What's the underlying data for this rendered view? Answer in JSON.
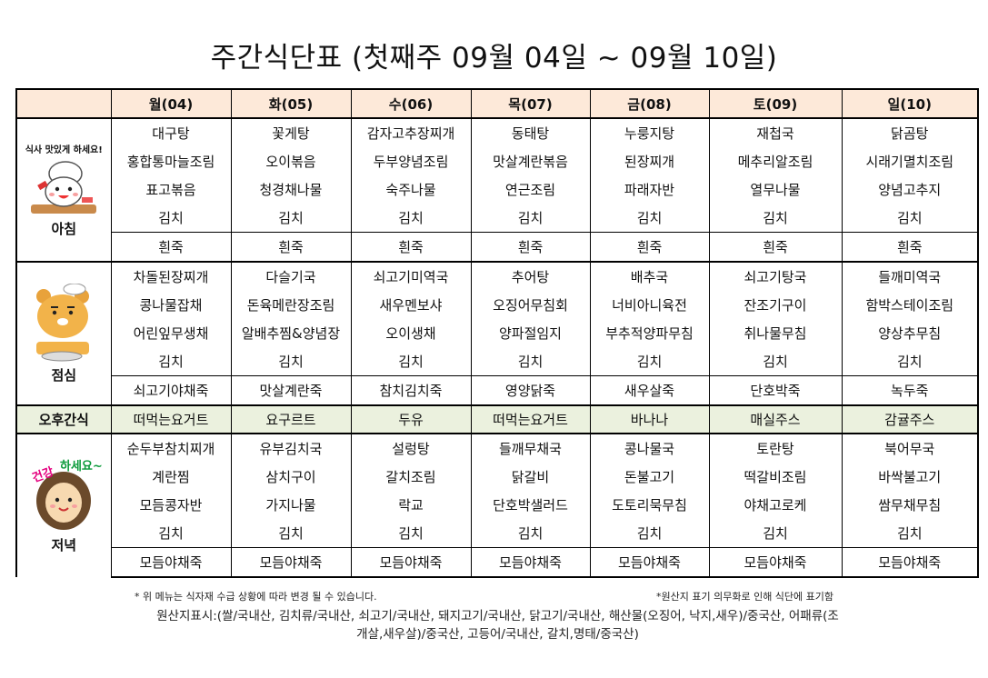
{
  "title": "주간식단표 (첫째주 09월 04일 ~ 09월 10일)",
  "days": [
    "월(04)",
    "화(05)",
    "수(06)",
    "목(07)",
    "금(08)",
    "토(09)",
    "일(10)"
  ],
  "breakfast": {
    "label": "아침",
    "image_caption": "식사 맛있게 하세요!",
    "rows": [
      [
        "대구탕",
        "꽃게탕",
        "감자고추장찌개",
        "동태탕",
        "누룽지탕",
        "재첩국",
        "닭곰탕"
      ],
      [
        "홍합통마늘조림",
        "오이볶음",
        "두부양념조림",
        "맛살계란볶음",
        "된장찌개",
        "메추리알조림",
        "시래기멸치조림"
      ],
      [
        "표고볶음",
        "청경채나물",
        "숙주나물",
        "연근조림",
        "파래자반",
        "열무나물",
        "양념고추지"
      ],
      [
        "김치",
        "김치",
        "김치",
        "김치",
        "김치",
        "김치",
        "김치"
      ],
      [
        "흰죽",
        "흰죽",
        "흰죽",
        "흰죽",
        "흰죽",
        "흰죽",
        "흰죽"
      ]
    ]
  },
  "lunch": {
    "label": "점심",
    "rows": [
      [
        "차돌된장찌개",
        "다슬기국",
        "쇠고기미역국",
        "추어탕",
        "배추국",
        "쇠고기탕국",
        "들깨미역국"
      ],
      [
        "콩나물잡채",
        "돈육메란장조림",
        "새우멘보샤",
        "오징어무침회",
        "너비아니육전",
        "잔조기구이",
        "함박스테이조림"
      ],
      [
        "어린잎무생채",
        "알배추찜&양념장",
        "오이생채",
        "양파절임지",
        "부추적양파무침",
        "취나물무침",
        "양상추무침"
      ],
      [
        "김치",
        "김치",
        "김치",
        "김치",
        "김치",
        "김치",
        "김치"
      ],
      [
        "쇠고기야채죽",
        "맛살계란죽",
        "참치김치죽",
        "영양닭죽",
        "새우살죽",
        "단호박죽",
        "녹두죽"
      ]
    ]
  },
  "snack": {
    "label": "오후간식",
    "items": [
      "떠먹는요거트",
      "요구르트",
      "두유",
      "떠먹는요거트",
      "바나나",
      "매실주스",
      "감귤주스"
    ]
  },
  "dinner": {
    "label": "저녁",
    "image_caption": "건강하세요~",
    "rows": [
      [
        "순두부참치찌개",
        "유부김치국",
        "설렁탕",
        "들깨무채국",
        "콩나물국",
        "토란탕",
        "북어무국"
      ],
      [
        "계란찜",
        "삼치구이",
        "갈치조림",
        "닭갈비",
        "돈불고기",
        "떡갈비조림",
        "바싹불고기"
      ],
      [
        "모듬콩자반",
        "가지나물",
        "락교",
        "단호박샐러드",
        "도토리묵무침",
        "야채고로케",
        "쌈무채무침"
      ],
      [
        "김치",
        "김치",
        "김치",
        "김치",
        "김치",
        "김치",
        "김치"
      ],
      [
        "모듬야채죽",
        "모듬야채죽",
        "모듬야채죽",
        "모듬야채죽",
        "모듬야채죽",
        "모듬야채죽",
        "모듬야채죽"
      ]
    ]
  },
  "notes": {
    "left": "* 위 메뉴는 식자재 수급 상황에 따라 변경 될 수 있습니다.",
    "right": "*원산지 표기 의무화로 인해 식단에 표기함",
    "origin_line1": "원산지표시:(쌀/국내산, 김치류/국내산, 쇠고기/국내산, 돼지고기/국내산, 닭고기/국내산, 해산물(오징어, 낙지,새우)/중국산, 어패류(조",
    "origin_line2": "개살,새우살)/중국산, 고등어/국내산, 갈치,명태/중국산)"
  },
  "colors": {
    "header_bg": "#fde9d9",
    "snack_bg": "#ebf1de"
  }
}
